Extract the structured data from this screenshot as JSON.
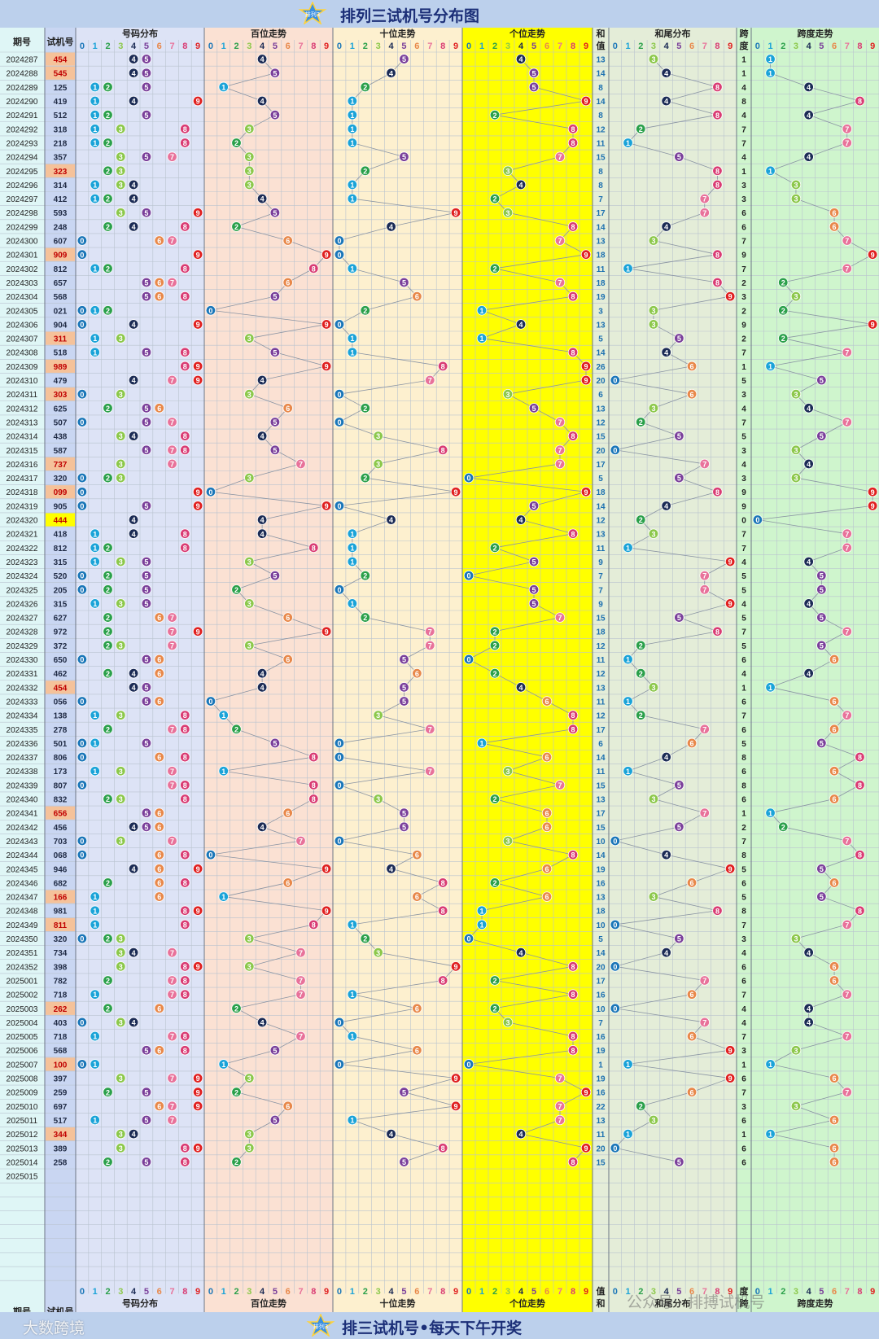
{
  "header": {
    "title": "排列三试机号分布图"
  },
  "footer": {
    "slogan": "排三试机号•每天下午开奖"
  },
  "watermarks": {
    "left": "大数跨境",
    "right": "公众号 · 排搏试机号"
  },
  "logo_text": "排列3",
  "columns": {
    "period": "期号",
    "trial": "试机号",
    "sections": [
      "号码分布",
      "百位走势",
      "十位走势",
      "个位走势",
      "和尾分布",
      "跨度走势"
    ],
    "sum": [
      "和",
      "值"
    ],
    "span": [
      "跨",
      "度"
    ],
    "digits": [
      "0",
      "1",
      "2",
      "3",
      "4",
      "5",
      "6",
      "7",
      "8",
      "9"
    ]
  },
  "colors": {
    "digit": [
      "#1a76b8",
      "#1aa3d8",
      "#2aa04a",
      "#8cc84b",
      "#1b2b55",
      "#7a3f9a",
      "#e8884a",
      "#e8729a",
      "#d93b73",
      "#e02020"
    ],
    "section_bg": [
      "#dde3f6",
      "#fbe1d3",
      "#fdf0cf",
      "#ffff00",
      "#e4edd8",
      "#cff5cd"
    ],
    "banner": "#bcd0ec",
    "title": "#1c2f78",
    "highlight_trial": "#f5c29a",
    "highlight_baozi": "#ffff00"
  },
  "chart_data": {
    "type": "table",
    "title": "排列三试机号分布图",
    "rows": [
      {
        "period": "2024287",
        "trial": "454",
        "sum": "13",
        "span": "1"
      },
      {
        "period": "2024288",
        "trial": "545",
        "sum": "14",
        "span": "1"
      },
      {
        "period": "2024289",
        "trial": "125",
        "sum": "8",
        "span": "4"
      },
      {
        "period": "2024290",
        "trial": "419",
        "sum": "14",
        "span": "8"
      },
      {
        "period": "2024291",
        "trial": "512",
        "sum": "8",
        "span": "4"
      },
      {
        "period": "2024292",
        "trial": "318",
        "sum": "12",
        "span": "7"
      },
      {
        "period": "2024293",
        "trial": "218",
        "sum": "11",
        "span": "7"
      },
      {
        "period": "2024294",
        "trial": "357",
        "sum": "15",
        "span": "4"
      },
      {
        "period": "2024295",
        "trial": "323",
        "sum": "8",
        "span": "1"
      },
      {
        "period": "2024296",
        "trial": "314",
        "sum": "8",
        "span": "3"
      },
      {
        "period": "2024297",
        "trial": "412",
        "sum": "7",
        "span": "3"
      },
      {
        "period": "2024298",
        "trial": "593",
        "sum": "17",
        "span": "6"
      },
      {
        "period": "2024299",
        "trial": "248",
        "sum": "14",
        "span": "6"
      },
      {
        "period": "2024300",
        "trial": "607",
        "sum": "13",
        "span": "7"
      },
      {
        "period": "2024301",
        "trial": "909",
        "sum": "18",
        "span": "9"
      },
      {
        "period": "2024302",
        "trial": "812",
        "sum": "11",
        "span": "7"
      },
      {
        "period": "2024303",
        "trial": "657",
        "sum": "18",
        "span": "2"
      },
      {
        "period": "2024304",
        "trial": "568",
        "sum": "19",
        "span": "3"
      },
      {
        "period": "2024305",
        "trial": "021",
        "sum": "3",
        "span": "2"
      },
      {
        "period": "2024306",
        "trial": "904",
        "sum": "13",
        "span": "9"
      },
      {
        "period": "2024307",
        "trial": "311",
        "sum": "5",
        "span": "2"
      },
      {
        "period": "2024308",
        "trial": "518",
        "sum": "14",
        "span": "7"
      },
      {
        "period": "2024309",
        "trial": "989",
        "sum": "26",
        "span": "1"
      },
      {
        "period": "2024310",
        "trial": "479",
        "sum": "20",
        "span": "5"
      },
      {
        "period": "2024311",
        "trial": "303",
        "sum": "6",
        "span": "3"
      },
      {
        "period": "2024312",
        "trial": "625",
        "sum": "13",
        "span": "4"
      },
      {
        "period": "2024313",
        "trial": "507",
        "sum": "12",
        "span": "7"
      },
      {
        "period": "2024314",
        "trial": "438",
        "sum": "15",
        "span": "5"
      },
      {
        "period": "2024315",
        "trial": "587",
        "sum": "20",
        "span": "3"
      },
      {
        "period": "2024316",
        "trial": "737",
        "sum": "17",
        "span": "4"
      },
      {
        "period": "2024317",
        "trial": "320",
        "sum": "5",
        "span": "3"
      },
      {
        "period": "2024318",
        "trial": "099",
        "sum": "18",
        "span": "9"
      },
      {
        "period": "2024319",
        "trial": "905",
        "sum": "14",
        "span": "9"
      },
      {
        "period": "2024320",
        "trial": "444",
        "sum": "12",
        "span": "0"
      },
      {
        "period": "2024321",
        "trial": "418",
        "sum": "13",
        "span": "7"
      },
      {
        "period": "2024322",
        "trial": "812",
        "sum": "11",
        "span": "7"
      },
      {
        "period": "2024323",
        "trial": "315",
        "sum": "9",
        "span": "4"
      },
      {
        "period": "2024324",
        "trial": "520",
        "sum": "7",
        "span": "5"
      },
      {
        "period": "2024325",
        "trial": "205",
        "sum": "7",
        "span": "5"
      },
      {
        "period": "2024326",
        "trial": "315",
        "sum": "9",
        "span": "4"
      },
      {
        "period": "2024327",
        "trial": "627",
        "sum": "15",
        "span": "5"
      },
      {
        "period": "2024328",
        "trial": "972",
        "sum": "18",
        "span": "7"
      },
      {
        "period": "2024329",
        "trial": "372",
        "sum": "12",
        "span": "5"
      },
      {
        "period": "2024330",
        "trial": "650",
        "sum": "11",
        "span": "6"
      },
      {
        "period": "2024331",
        "trial": "462",
        "sum": "12",
        "span": "4"
      },
      {
        "period": "2024332",
        "trial": "454",
        "sum": "13",
        "span": "1"
      },
      {
        "period": "2024333",
        "trial": "056",
        "sum": "11",
        "span": "6"
      },
      {
        "period": "2024334",
        "trial": "138",
        "sum": "12",
        "span": "7"
      },
      {
        "period": "2024335",
        "trial": "278",
        "sum": "17",
        "span": "6"
      },
      {
        "period": "2024336",
        "trial": "501",
        "sum": "6",
        "span": "5"
      },
      {
        "period": "2024337",
        "trial": "806",
        "sum": "14",
        "span": "8"
      },
      {
        "period": "2024338",
        "trial": "173",
        "sum": "11",
        "span": "6"
      },
      {
        "period": "2024339",
        "trial": "807",
        "sum": "15",
        "span": "8"
      },
      {
        "period": "2024340",
        "trial": "832",
        "sum": "13",
        "span": "6"
      },
      {
        "period": "2024341",
        "trial": "656",
        "sum": "17",
        "span": "1"
      },
      {
        "period": "2024342",
        "trial": "456",
        "sum": "15",
        "span": "2"
      },
      {
        "period": "2024343",
        "trial": "703",
        "sum": "10",
        "span": "7"
      },
      {
        "period": "2024344",
        "trial": "068",
        "sum": "14",
        "span": "8"
      },
      {
        "period": "2024345",
        "trial": "946",
        "sum": "19",
        "span": "5"
      },
      {
        "period": "2024346",
        "trial": "682",
        "sum": "16",
        "span": "6"
      },
      {
        "period": "2024347",
        "trial": "166",
        "sum": "13",
        "span": "5"
      },
      {
        "period": "2024348",
        "trial": "981",
        "sum": "18",
        "span": "8"
      },
      {
        "period": "2024349",
        "trial": "811",
        "sum": "10",
        "span": "7"
      },
      {
        "period": "2024350",
        "trial": "320",
        "sum": "5",
        "span": "3"
      },
      {
        "period": "2024351",
        "trial": "734",
        "sum": "14",
        "span": "4"
      },
      {
        "period": "2024352",
        "trial": "398",
        "sum": "20",
        "span": "6"
      },
      {
        "period": "2025001",
        "trial": "782",
        "sum": "17",
        "span": "6"
      },
      {
        "period": "2025002",
        "trial": "718",
        "sum": "16",
        "span": "7"
      },
      {
        "period": "2025003",
        "trial": "262",
        "sum": "10",
        "span": "4"
      },
      {
        "period": "2025004",
        "trial": "403",
        "sum": "7",
        "span": "4"
      },
      {
        "period": "2025005",
        "trial": "718",
        "sum": "16",
        "span": "7"
      },
      {
        "period": "2025006",
        "trial": "568",
        "sum": "19",
        "span": "3"
      },
      {
        "period": "2025007",
        "trial": "100",
        "sum": "1",
        "span": "1"
      },
      {
        "period": "2025008",
        "trial": "397",
        "sum": "19",
        "span": "6"
      },
      {
        "period": "2025009",
        "trial": "259",
        "sum": "16",
        "span": "7"
      },
      {
        "period": "2025010",
        "trial": "697",
        "sum": "22",
        "span": "3"
      },
      {
        "period": "2025011",
        "trial": "517",
        "sum": "13",
        "span": "6"
      },
      {
        "period": "2025012",
        "trial": "344",
        "sum": "11",
        "span": "1"
      },
      {
        "period": "2025013",
        "trial": "389",
        "sum": "20",
        "span": "6"
      },
      {
        "period": "2025014",
        "trial": "258",
        "sum": "15",
        "span": "6"
      },
      {
        "period": "2025015",
        "trial": "",
        "sum": "",
        "span": ""
      }
    ]
  }
}
